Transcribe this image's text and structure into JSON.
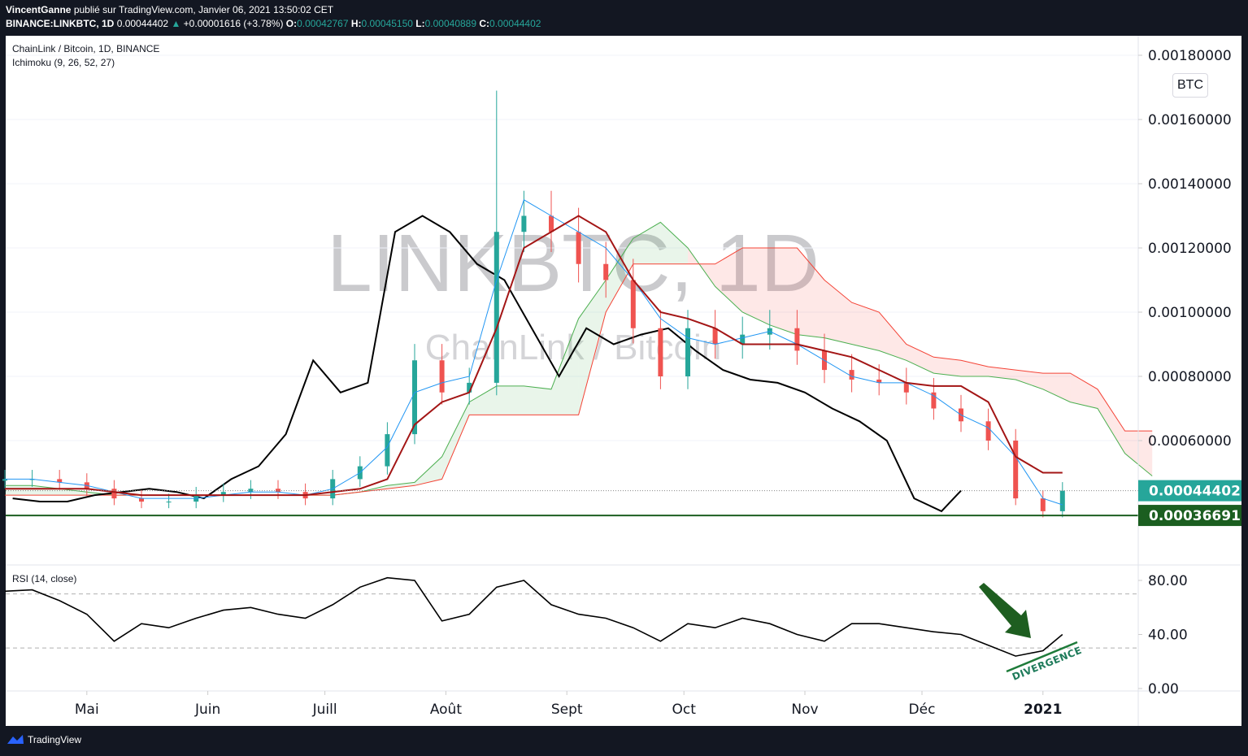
{
  "header": {
    "author": "VincentGanne",
    "published": "publié sur TradingView.com, Janvier 06, 2021 13:50:02 CET",
    "symbol": "BINANCE:LINKBTC, 1D",
    "last": "0.00044402",
    "change": "+0.00001616 (+3.78%)",
    "o_label": "O:",
    "o": "0.00042767",
    "h_label": "H:",
    "h": "0.00045150",
    "l_label": "L:",
    "l": "0.00040889",
    "c_label": "C:",
    "c": "0.00044402"
  },
  "legend": {
    "title": "ChainLink / Bitcoin, 1D, BINANCE",
    "indicator": "Ichimoku (9, 26, 52, 27)",
    "rsi": "RSI (14, close)"
  },
  "watermark": {
    "main": "LINKBTC, 1D",
    "sub": "ChainLink / Bitcoin"
  },
  "currency_button": "BTC",
  "footer": {
    "brand": "TradingView"
  },
  "annotation": {
    "text": "DIVERGENCE",
    "color": "#1e7b5a",
    "arrow_color": "#1e5e20"
  },
  "colors": {
    "up": "#26a69a",
    "down": "#ef5350",
    "tenkan": "#2196f3",
    "kijun": "#a31515",
    "chikou": "#000000",
    "senkou_a": "#4caf50",
    "senkou_b": "#f44336",
    "last_price": "#26a69a",
    "support": "#1b5e20"
  },
  "chart_data": [
    {
      "type": "candlestick",
      "title": "ChainLink / Bitcoin, 1D, BINANCE",
      "ylim": [
        0.0003,
        0.00185
      ],
      "y_ticks": [
        "0.00060000",
        "0.00080000",
        "0.00100000",
        "0.00120000",
        "0.00140000",
        "0.00160000",
        "0.00180000"
      ],
      "x_ticks": [
        {
          "label": "Mai",
          "date": "2020-05-01"
        },
        {
          "label": "Juin",
          "date": "2020-06-01"
        },
        {
          "label": "Juill",
          "date": "2020-07-01"
        },
        {
          "label": "Août",
          "date": "2020-08-01"
        },
        {
          "label": "Sept",
          "date": "2020-09-01"
        },
        {
          "label": "Oct",
          "date": "2020-10-01"
        },
        {
          "label": "Nov",
          "date": "2020-11-01"
        },
        {
          "label": "Déc",
          "date": "2020-12-01"
        },
        {
          "label": "2021",
          "date": "2021-01-01"
        }
      ],
      "dates": [
        "2020-04-10",
        "2020-04-17",
        "2020-04-24",
        "2020-05-01",
        "2020-05-08",
        "2020-05-15",
        "2020-05-22",
        "2020-05-29",
        "2020-06-05",
        "2020-06-12",
        "2020-06-19",
        "2020-06-26",
        "2020-07-03",
        "2020-07-10",
        "2020-07-17",
        "2020-07-24",
        "2020-07-31",
        "2020-08-07",
        "2020-08-14",
        "2020-08-21",
        "2020-08-28",
        "2020-09-04",
        "2020-09-11",
        "2020-09-18",
        "2020-09-25",
        "2020-10-02",
        "2020-10-09",
        "2020-10-16",
        "2020-10-23",
        "2020-10-30",
        "2020-11-06",
        "2020-11-13",
        "2020-11-20",
        "2020-11-27",
        "2020-12-04",
        "2020-12-11",
        "2020-12-18",
        "2020-12-25",
        "2021-01-01",
        "2021-01-06"
      ],
      "close": [
        0.00048,
        0.00048,
        0.00047,
        0.00045,
        0.00042,
        0.00041,
        0.00041,
        0.00043,
        0.00044,
        0.00045,
        0.00044,
        0.00042,
        0.00048,
        0.00052,
        0.00062,
        0.00085,
        0.00075,
        0.00078,
        0.00125,
        0.0013,
        0.00125,
        0.00115,
        0.0011,
        0.00095,
        0.0008,
        0.00095,
        0.0009,
        0.00093,
        0.00095,
        0.00088,
        0.00082,
        0.00079,
        0.00078,
        0.00075,
        0.0007,
        0.00066,
        0.0006,
        0.00042,
        0.00038,
        0.00044402
      ],
      "high_extremes": [
        {
          "date": "2020-08-15",
          "value": 0.00169
        }
      ],
      "tenkan": [
        0.00048,
        0.00048,
        0.00047,
        0.00046,
        0.00044,
        0.00042,
        0.00042,
        0.00042,
        0.00043,
        0.00044,
        0.00044,
        0.00043,
        0.00045,
        0.0005,
        0.00058,
        0.00075,
        0.00078,
        0.0008,
        0.0011,
        0.00135,
        0.0013,
        0.00125,
        0.0012,
        0.0011,
        0.00098,
        0.00092,
        0.0009,
        0.00092,
        0.00094,
        0.0009,
        0.00085,
        0.0008,
        0.00078,
        0.00078,
        0.00074,
        0.00068,
        0.00064,
        0.00055,
        0.00042,
        0.0004
      ],
      "kijun": [
        0.00045,
        0.00045,
        0.00045,
        0.00045,
        0.00044,
        0.00043,
        0.00043,
        0.00043,
        0.00043,
        0.00043,
        0.00043,
        0.00043,
        0.00044,
        0.00045,
        0.00048,
        0.00065,
        0.00072,
        0.00075,
        0.00095,
        0.0012,
        0.00125,
        0.0013,
        0.00125,
        0.0011,
        0.001,
        0.00098,
        0.00095,
        0.0009,
        0.0009,
        0.0009,
        0.00088,
        0.00086,
        0.00082,
        0.00078,
        0.00077,
        0.00077,
        0.00072,
        0.00055,
        0.0005,
        0.0005
      ],
      "chikou_shift_days": 26,
      "senkou_a": [
        0.00046,
        0.00046,
        0.00045,
        0.00044,
        0.00043,
        0.00043,
        0.00043,
        0.00043,
        0.00043,
        0.00043,
        0.00043,
        0.00043,
        0.00043,
        0.00044,
        0.00046,
        0.00047,
        0.00055,
        0.00072,
        0.00077,
        0.00077,
        0.00076,
        0.00098,
        0.0011,
        0.00123,
        0.00128,
        0.0012,
        0.00108,
        0.001,
        0.00096,
        0.00093,
        0.00092,
        0.0009,
        0.00088,
        0.00085,
        0.00081,
        0.0008,
        0.0008,
        0.00079,
        0.00076,
        0.00072,
        0.0007,
        0.00056,
        0.00049
      ],
      "senkou_b": [
        0.00043,
        0.00043,
        0.00043,
        0.00043,
        0.00043,
        0.00043,
        0.00043,
        0.00043,
        0.00043,
        0.00043,
        0.00043,
        0.00043,
        0.00043,
        0.00044,
        0.00045,
        0.00046,
        0.00048,
        0.00068,
        0.00068,
        0.00068,
        0.00068,
        0.00068,
        0.001,
        0.00115,
        0.00115,
        0.00115,
        0.00115,
        0.0012,
        0.0012,
        0.0012,
        0.0011,
        0.00103,
        0.001,
        0.0009,
        0.00086,
        0.00085,
        0.00083,
        0.00082,
        0.00081,
        0.00081,
        0.00076,
        0.00063,
        0.00063
      ],
      "price_labels": [
        {
          "label": "0.00044402",
          "value": 0.00044402,
          "kind": "last"
        },
        {
          "label": "0.00036691",
          "value": 0.00036691,
          "kind": "support-line"
        }
      ]
    },
    {
      "type": "line",
      "title": "RSI (14, close)",
      "ylim": [
        0,
        100
      ],
      "y_ticks": [
        "0.00",
        "40.00",
        "80.00"
      ],
      "bands": [
        30,
        70
      ],
      "values": [
        72,
        73,
        65,
        55,
        35,
        48,
        45,
        52,
        58,
        60,
        55,
        52,
        62,
        75,
        82,
        80,
        50,
        55,
        75,
        80,
        62,
        55,
        52,
        45,
        35,
        48,
        45,
        52,
        48,
        40,
        35,
        48,
        48,
        45,
        42,
        40,
        32,
        24,
        28,
        40
      ]
    }
  ]
}
